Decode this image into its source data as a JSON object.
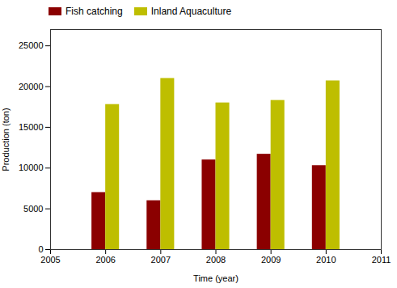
{
  "chart_data": {
    "type": "bar",
    "x": [
      2006,
      2007,
      2008,
      2009,
      2010
    ],
    "series": [
      {
        "name": "Fish catching",
        "color": "#8B0000",
        "values": [
          7000,
          6000,
          11000,
          11700,
          10300
        ]
      },
      {
        "name": "Inland Aquaculture",
        "color": "#BEBE00",
        "values": [
          17800,
          21000,
          18000,
          18300,
          20700
        ]
      }
    ],
    "xlim": [
      2005,
      2011
    ],
    "xticks": [
      2005,
      2006,
      2007,
      2008,
      2009,
      2010,
      2011
    ],
    "ylim": [
      0,
      27000
    ],
    "yticks": [
      0,
      5000,
      10000,
      15000,
      20000,
      25000
    ],
    "xlabel": "Time (year)",
    "ylabel": "Production (ton)",
    "legend": "upper left",
    "grid": false
  }
}
